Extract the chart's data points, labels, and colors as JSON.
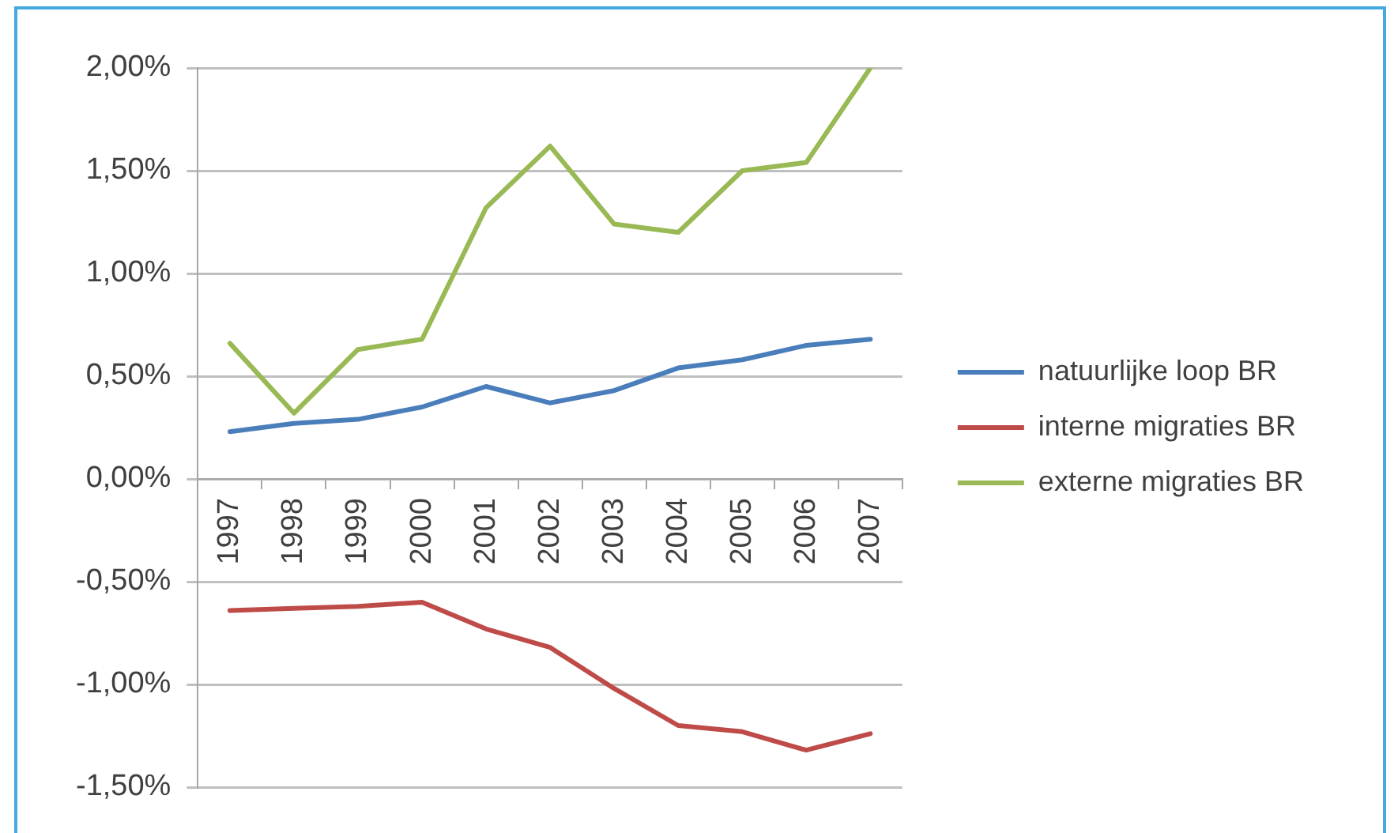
{
  "chart_data": {
    "type": "line",
    "categories": [
      "1997",
      "1998",
      "1999",
      "2000",
      "2001",
      "2002",
      "2003",
      "2004",
      "2005",
      "2006",
      "2007"
    ],
    "series": [
      {
        "name": "natuurlijke loop BR",
        "color": "#4a7ebb",
        "values": [
          0.23,
          0.27,
          0.29,
          0.35,
          0.45,
          0.37,
          0.43,
          0.54,
          0.58,
          0.65,
          0.68
        ]
      },
      {
        "name": "interne migraties BR",
        "color": "#be4b48",
        "values": [
          -0.64,
          -0.63,
          -0.62,
          -0.6,
          -0.73,
          -0.82,
          -1.02,
          -1.2,
          -1.23,
          -1.32,
          -1.24
        ]
      },
      {
        "name": "externe migraties BR",
        "color": "#98b954",
        "values": [
          0.66,
          0.32,
          0.63,
          0.68,
          1.32,
          1.62,
          1.24,
          1.2,
          1.5,
          1.54,
          2.0
        ]
      }
    ],
    "ylim": [
      -1.5,
      2
    ],
    "yticks": [
      {
        "value": -1.5,
        "label": "-1,50%"
      },
      {
        "value": -1,
        "label": "-1,00%"
      },
      {
        "value": -0.5,
        "label": "-0,50%"
      },
      {
        "value": 0,
        "label": "0,00%"
      },
      {
        "value": 0.5,
        "label": "0,50%"
      },
      {
        "value": 1,
        "label": "1,00%"
      },
      {
        "value": 1.5,
        "label": "1,50%"
      },
      {
        "value": 2,
        "label": "2,00%"
      }
    ],
    "grid": "y",
    "legend": "right"
  }
}
